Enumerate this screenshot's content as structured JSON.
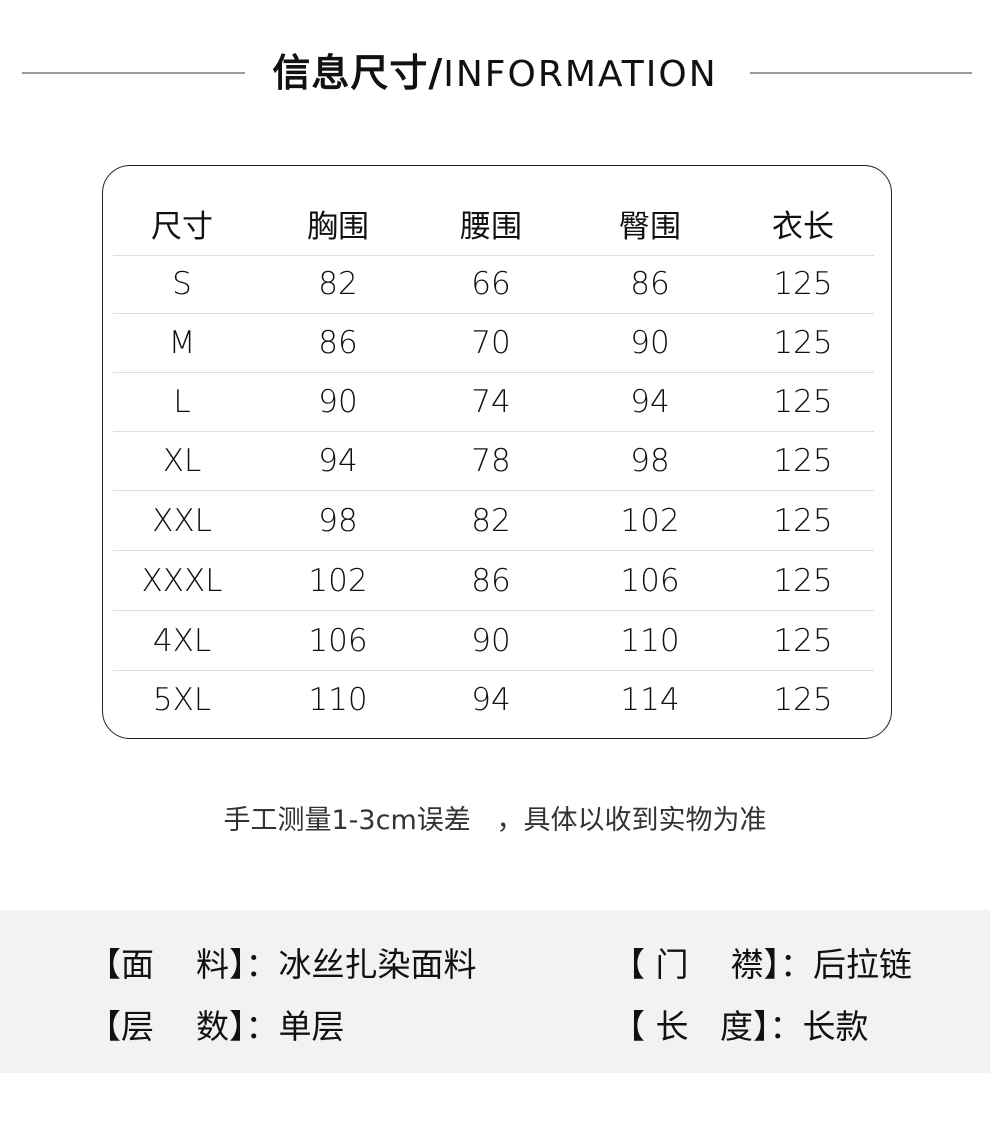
{
  "title": {
    "cn": "信息尺寸/",
    "en": "INFORMATION"
  },
  "table": {
    "headers": [
      "尺寸",
      "胸围",
      "腰围",
      "臀围",
      "衣长"
    ],
    "rows": [
      [
        "S",
        "82",
        "66",
        "86",
        "125"
      ],
      [
        "M",
        "86",
        "70",
        "90",
        "125"
      ],
      [
        "L",
        "90",
        "74",
        "94",
        "125"
      ],
      [
        "XL",
        "94",
        "78",
        "98",
        "125"
      ],
      [
        "XXL",
        "98",
        "82",
        "102",
        "125"
      ],
      [
        "XXXL",
        "102",
        "86",
        "106",
        "125"
      ],
      [
        "4XL",
        "106",
        "90",
        "110",
        "125"
      ],
      [
        "5XL",
        "110",
        "94",
        "114",
        "125"
      ]
    ]
  },
  "note": "手工测量1-3cm误差   ，具体以收到实物为准",
  "specs": [
    {
      "label": "【面    料】：",
      "value": "冰丝扎染面料"
    },
    {
      "label": "【 门    襟】：",
      "value": "后拉链"
    },
    {
      "label": "【层    数】：",
      "value": "单层"
    },
    {
      "label": "【 长   度】：",
      "value": "长款"
    }
  ],
  "colors": {
    "band": "#f2f2f2",
    "line": "#9a9a9a"
  }
}
